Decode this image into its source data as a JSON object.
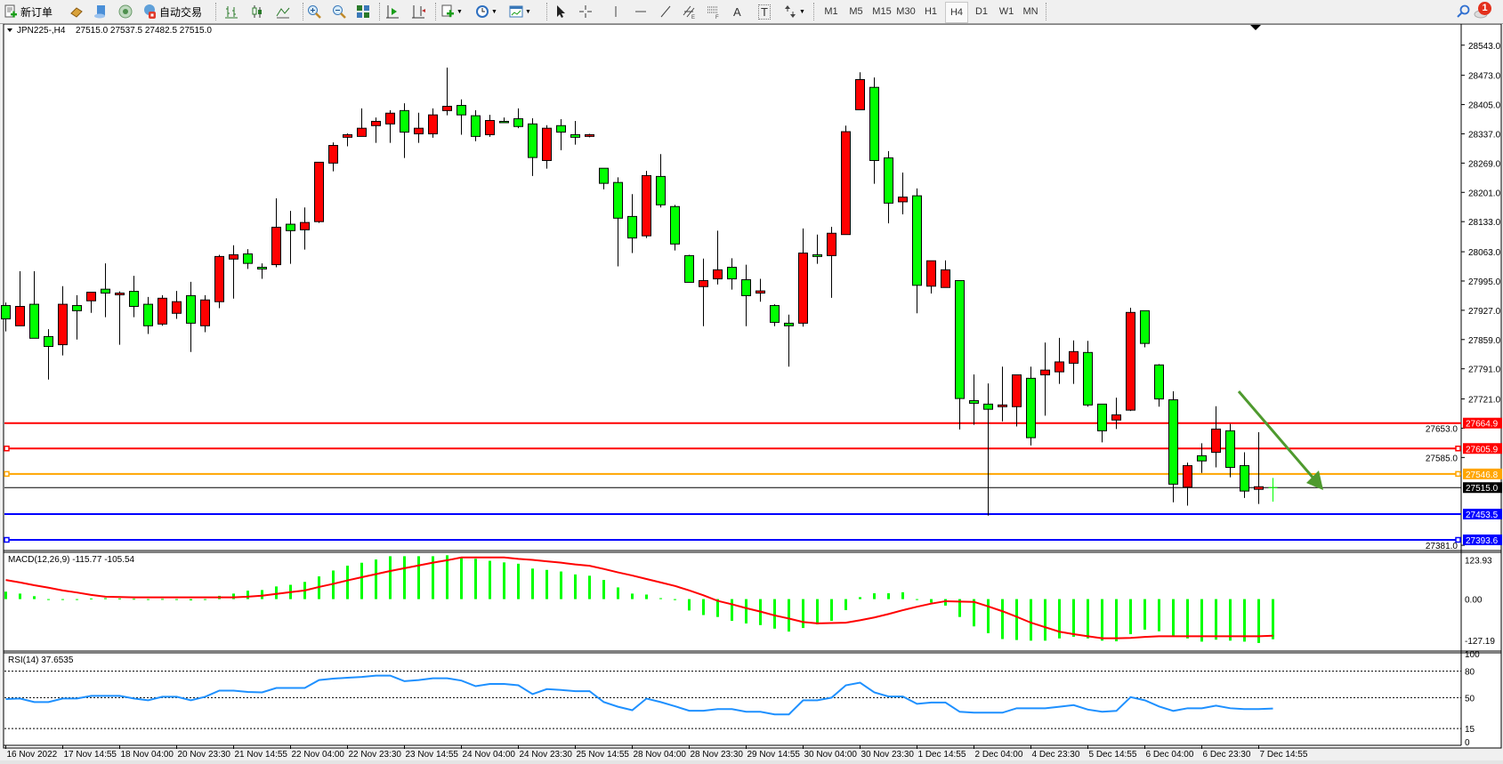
{
  "toolbar": {
    "new_order_label": "新订单",
    "auto_trading_label": "自动交易",
    "icons": [
      "new-order-icon",
      "gold-bars-icon",
      "market-watch-icon",
      "signals-icon",
      "auto-trading-icon",
      "bar-chart-icon",
      "candlestick-chart-icon",
      "line-chart-icon",
      "zoom-in-icon",
      "zoom-out-icon",
      "tile-windows-icon",
      "auto-scroll-icon",
      "chart-shift-icon",
      "indicators-icon",
      "periods-icon",
      "templates-icon",
      "cursor-icon",
      "crosshair-icon",
      "vertical-line-icon",
      "horizontal-line-icon",
      "trendline-icon",
      "equidistant-channel-icon",
      "fibonacci-icon",
      "text-icon",
      "text-label-icon",
      "arrows-icon",
      "search-icon",
      "notification-icon"
    ],
    "text_tool_label": "A",
    "text_label_tool": "T",
    "timeframes": [
      "M1",
      "M5",
      "M15",
      "M30",
      "H1",
      "H4",
      "D1",
      "W1",
      "MN"
    ],
    "active_timeframe": "H4",
    "notification_count": "1"
  },
  "chart_header": {
    "symbol": "JPN225-,H4",
    "ohlc": "27515.0 27537.5 27482.5 27515.0"
  },
  "colors": {
    "bull_candle": "#ff0000",
    "bear_candle": "#00ff00",
    "candle_outline": "#000000",
    "macd_histogram": "#00ff00",
    "macd_signal": "#ff0000",
    "rsi_line": "#1e90ff",
    "arrow": "#4e9a2e"
  },
  "chart_data": [
    {
      "type": "candlestick",
      "symbol": "JPN225-",
      "timeframe": "H4",
      "ylim": [
        27371,
        28598
      ],
      "grid": false,
      "price_ticks": [
        "28543.0",
        "28473.0",
        "28405.0",
        "28337.0",
        "28269.0",
        "28201.0",
        "28133.0",
        "28063.0",
        "27995.0",
        "27927.0",
        "27859.0",
        "27791.0",
        "27721.0",
        "27653.0",
        "27585.0",
        "27381.0"
      ],
      "time_labels": [
        "16 Nov 2022",
        "17 Nov 14:55",
        "18 Nov 04:00",
        "20 Nov 23:30",
        "21 Nov 14:55",
        "22 Nov 04:00",
        "22 Nov 23:30",
        "23 Nov 14:55",
        "24 Nov 04:00",
        "24 Nov 23:30",
        "25 Nov 14:55",
        "28 Nov 04:00",
        "28 Nov 23:30",
        "29 Nov 14:55",
        "30 Nov 04:00",
        "30 Nov 23:30",
        "1 Dec 14:55",
        "2 Dec 04:00",
        "4 Dec 23:30",
        "5 Dec 14:55",
        "6 Dec 04:00",
        "6 Dec 23:30",
        "7 Dec 14:55"
      ],
      "ohlc_fields": [
        "open",
        "high",
        "low",
        "close"
      ],
      "candles": [
        [
          27938,
          27945,
          27878,
          27907
        ],
        [
          27891,
          28018,
          27891,
          27936
        ],
        [
          27941,
          28018,
          27862,
          27862
        ],
        [
          27866,
          27883,
          27766,
          27843
        ],
        [
          27847,
          27983,
          27822,
          27941
        ],
        [
          27938,
          27962,
          27859,
          27926
        ],
        [
          27949,
          27969,
          27921,
          27969
        ],
        [
          27976,
          28036,
          27911,
          27967
        ],
        [
          27963,
          27971,
          27847,
          27967
        ],
        [
          27971,
          28007,
          27911,
          27936
        ],
        [
          27941,
          27958,
          27872,
          27891
        ],
        [
          27895,
          27962,
          27891,
          27955
        ],
        [
          27920,
          27972,
          27907,
          27947
        ],
        [
          27961,
          27993,
          27830,
          27897
        ],
        [
          27891,
          27962,
          27876,
          27951
        ],
        [
          27947,
          28056,
          27932,
          28052
        ],
        [
          28046,
          28078,
          27954,
          28056
        ],
        [
          28058,
          28069,
          28023,
          28036
        ],
        [
          28027,
          28036,
          28000,
          28023
        ],
        [
          28033,
          28187,
          28027,
          28120
        ],
        [
          28127,
          28158,
          28035,
          28112
        ],
        [
          28114,
          28166,
          28068,
          28131
        ],
        [
          28133,
          28271,
          28130,
          28271
        ],
        [
          28269,
          28317,
          28250,
          28310
        ],
        [
          28329,
          28338,
          28308,
          28335
        ],
        [
          28331,
          28396,
          28331,
          28350
        ],
        [
          28356,
          28375,
          28316,
          28366
        ],
        [
          28360,
          28392,
          28316,
          28385
        ],
        [
          28391,
          28408,
          28281,
          28341
        ],
        [
          28337,
          28386,
          28316,
          28350
        ],
        [
          28337,
          28396,
          28328,
          28381
        ],
        [
          28391,
          28491,
          28380,
          28401
        ],
        [
          28403,
          28417,
          28335,
          28381
        ],
        [
          28379,
          28392,
          28320,
          28331
        ],
        [
          28335,
          28381,
          28330,
          28368
        ],
        [
          28366,
          28375,
          28366,
          28366
        ],
        [
          28372,
          28396,
          28350,
          28354
        ],
        [
          28360,
          28373,
          28239,
          28282
        ],
        [
          28275,
          28357,
          28256,
          28350
        ],
        [
          28356,
          28371,
          28299,
          28341
        ],
        [
          28335,
          28367,
          28312,
          28329
        ],
        [
          28331,
          28337,
          28329,
          28335
        ],
        [
          28257,
          28257,
          28208,
          28222
        ],
        [
          28224,
          28236,
          28029,
          28141
        ],
        [
          28145,
          28197,
          28060,
          28095
        ],
        [
          28100,
          28251,
          28095,
          28240
        ],
        [
          28238,
          28290,
          28166,
          28172
        ],
        [
          28168,
          28172,
          28066,
          28081
        ],
        [
          28054,
          28056,
          27992,
          27992
        ],
        [
          27982,
          28047,
          27890,
          27996
        ],
        [
          28000,
          28112,
          27987,
          28021
        ],
        [
          28027,
          28048,
          27975,
          28000
        ],
        [
          27998,
          28033,
          27890,
          27961
        ],
        [
          27967,
          28000,
          27947,
          27972
        ],
        [
          27938,
          27941,
          27890,
          27899
        ],
        [
          27897,
          27917,
          27796,
          27891
        ],
        [
          27897,
          28117,
          27889,
          28060
        ],
        [
          28056,
          28103,
          28035,
          28052
        ],
        [
          28054,
          28121,
          27956,
          28106
        ],
        [
          28103,
          28356,
          28103,
          28342
        ],
        [
          28393,
          28480,
          28393,
          28463
        ],
        [
          28445,
          28468,
          28221,
          28275
        ],
        [
          28281,
          28297,
          28129,
          28176
        ],
        [
          28179,
          28247,
          28150,
          28190
        ],
        [
          28193,
          28210,
          27920,
          27985
        ],
        [
          27983,
          28042,
          27966,
          28042
        ],
        [
          27980,
          28043,
          27980,
          28021
        ],
        [
          27996,
          27996,
          27650,
          27722
        ],
        [
          27717,
          27778,
          27661,
          27711
        ],
        [
          27709,
          27757,
          27450,
          27697
        ],
        [
          27703,
          27796,
          27669,
          27707
        ],
        [
          27703,
          27777,
          27657,
          27777
        ],
        [
          27769,
          27796,
          27613,
          27631
        ],
        [
          27777,
          27852,
          27682,
          27788
        ],
        [
          27784,
          27863,
          27756,
          27807
        ],
        [
          27804,
          27857,
          27756,
          27831
        ],
        [
          27829,
          27856,
          27703,
          27707
        ],
        [
          27709,
          27709,
          27620,
          27647
        ],
        [
          27672,
          27724,
          27651,
          27684
        ],
        [
          27695,
          27933,
          27693,
          27922
        ],
        [
          27926,
          27926,
          27841,
          27850
        ],
        [
          27800,
          27802,
          27703,
          27721
        ],
        [
          27719,
          27739,
          27481,
          27523
        ],
        [
          27516,
          27573,
          27473,
          27566
        ],
        [
          27589,
          27618,
          27549,
          27577
        ],
        [
          27597,
          27704,
          27562,
          27651
        ],
        [
          27647,
          27663,
          27539,
          27562
        ],
        [
          27566,
          27597,
          27491,
          27507
        ],
        [
          27511,
          27644,
          27477,
          27517
        ],
        [
          27515,
          27537.5,
          27482.5,
          27515
        ]
      ],
      "bid_line": {
        "price": 27515.0,
        "label": "27515.0",
        "color": "#000000"
      },
      "horizontal_lines": [
        {
          "price": 27664.9,
          "label": "27664.9",
          "color": "#ff0000",
          "marker": false
        },
        {
          "price": 27605.9,
          "label": "27605.9",
          "color": "#ff0000",
          "marker": true
        },
        {
          "price": 27546.8,
          "label": "27546.8",
          "color": "#ffa500",
          "marker": true
        },
        {
          "price": 27453.5,
          "label": "27453.5",
          "color": "#0000ff",
          "marker": false
        },
        {
          "price": 27393.6,
          "label": "27393.6",
          "color": "#0000ff",
          "marker": true
        }
      ],
      "annotation": {
        "type": "arrow",
        "direction": "down-right",
        "color": "#4e9a2e"
      }
    },
    {
      "type": "bar+line",
      "label": "MACD(12,26,9) -115.77 -105.54",
      "ylim": [
        -127.19,
        123.93
      ],
      "axis_labels": [
        "123.93",
        "0.00",
        "-127.19"
      ],
      "histogram": [
        21.5,
        15.9,
        8.4,
        -1.9,
        -1.9,
        -1.9,
        1.9,
        2.8,
        1.9,
        0.9,
        -0.9,
        0.5,
        0,
        -3.7,
        -1.9,
        9.4,
        15.9,
        24.3,
        26.2,
        36.5,
        41.2,
        49.6,
        65.5,
        82.4,
        96.4,
        104.8,
        114.2,
        123.6,
        123.6,
        123.6,
        123.6,
        126.4,
        120.7,
        116.1,
        110.4,
        105.8,
        102,
        88,
        84.2,
        79.6,
        71.1,
        67.4,
        55.2,
        33.7,
        15.9,
        13.1,
        2.8,
        -2.8,
        -32.8,
        -45.9,
        -51.5,
        -62.7,
        -70.2,
        -74.9,
        -85.2,
        -93.6,
        -83.3,
        -73,
        -62.7,
        -31.8,
        5.6,
        16.8,
        16.8,
        19.7,
        0,
        -10.3,
        -18.7,
        -51.5,
        -78.6,
        -98.3,
        -115.1,
        -117.9,
        -119.8,
        -119.8,
        -113.3,
        -108.6,
        -113.3,
        -119.8,
        -121.7,
        -101.1,
        -88,
        -92.7,
        -104.8,
        -113.3,
        -122.6,
        -117,
        -119.8,
        -122.6,
        -126.4,
        -115.77
      ],
      "signal": [
        55,
        48,
        40,
        33,
        25,
        19,
        12,
        7,
        6,
        5,
        5,
        5,
        5,
        5,
        5,
        5,
        5,
        7,
        10,
        15,
        20,
        25,
        35,
        44,
        54,
        63,
        72,
        81,
        89,
        97,
        105,
        112,
        120,
        120,
        120,
        120,
        116,
        113,
        109,
        105,
        100,
        96,
        87,
        77,
        68,
        58,
        48,
        38,
        25,
        11,
        -5,
        -15,
        -26,
        -36,
        -47,
        -56,
        -66,
        -70,
        -69,
        -68,
        -61,
        -53,
        -43,
        -32,
        -22,
        -13,
        -6,
        -7,
        -8,
        -21,
        -35,
        -51,
        -68,
        -81,
        -94,
        -101,
        -107,
        -113,
        -113,
        -112,
        -109,
        -107,
        -107,
        -107,
        -107,
        -107,
        -107,
        -107,
        -107,
        -105.54
      ]
    },
    {
      "type": "line",
      "label": "RSI(14) 37.6535",
      "ylim": [
        0,
        100
      ],
      "levels": [
        80,
        50,
        15
      ],
      "axis_labels": [
        "100",
        "80",
        "50",
        "15",
        "0"
      ],
      "values": [
        48.4,
        49,
        45,
        45,
        49,
        49,
        52,
        52,
        52,
        49,
        47,
        51,
        51,
        47,
        51,
        58,
        58,
        56.5,
        56,
        61,
        61,
        61,
        70,
        71.6,
        72.6,
        73.5,
        75,
        75,
        68.7,
        70,
        72,
        72,
        69.4,
        63,
        65.5,
        65.5,
        64,
        54,
        59.7,
        58.7,
        57.4,
        57.4,
        45,
        39.7,
        35.8,
        49,
        45,
        40.3,
        35.2,
        35.2,
        37,
        37,
        34,
        34,
        31,
        31,
        47,
        47,
        50,
        64,
        67,
        56,
        51.3,
        51.3,
        43,
        44.5,
        44.5,
        34,
        33,
        33,
        33,
        38,
        38,
        38,
        39.7,
        41.6,
        36.5,
        34,
        35,
        50.6,
        47,
        40,
        35,
        38,
        38,
        41,
        38,
        37,
        37,
        37.65
      ]
    }
  ]
}
